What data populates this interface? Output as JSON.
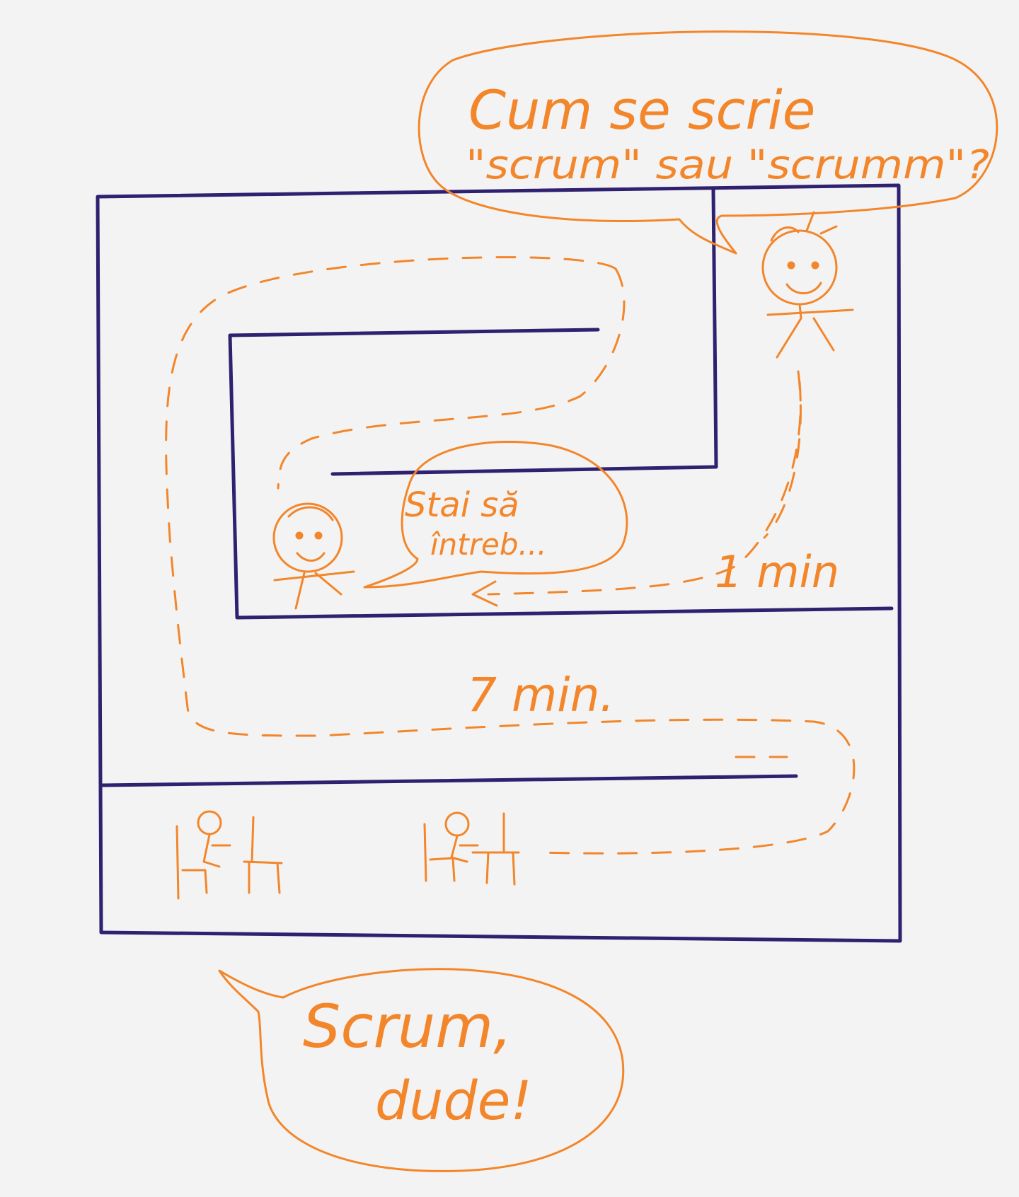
{
  "colors": {
    "wall": "#2f2170",
    "ink": "#f3862a",
    "paper": "#f3f3f3"
  },
  "bubble_top": {
    "line1": "Cum se scrie",
    "line2": "\"scrum\" sau \"scrumm\"?"
  },
  "bubble_middle": {
    "line1": "Stai să",
    "line2": "întreb..."
  },
  "bubble_bottom": {
    "line1": "Scrum,",
    "line2": "dude!"
  },
  "labels": {
    "short_route": "1 min",
    "long_route": "7 min."
  },
  "figures": [
    "stick-figure-asking",
    "stick-figure-answering",
    "person-at-desk",
    "person-at-desk"
  ]
}
